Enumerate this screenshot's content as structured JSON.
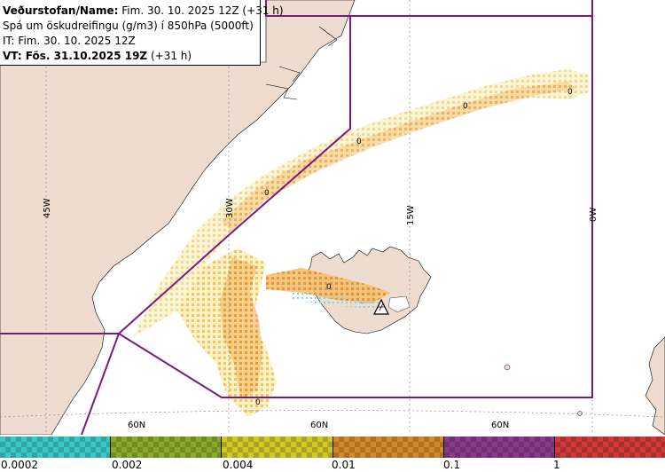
{
  "header": {
    "line1_label": "Veðurstofan/Name:",
    "line1_value": "Fim. 30. 10. 2025 12Z (+31 h)",
    "line2": "Spá um öskudreifingu (g/m3) í 850hPa (5000ft)",
    "line3": "IT: Fim. 30. 10. 2025 12Z",
    "line4_label": "VT: Fös. 31.10.2025 19Z",
    "line4_value": "(+31 h)"
  },
  "map": {
    "longitude_labels": [
      "45W",
      "30W",
      "15W",
      "0W"
    ],
    "latitude_labels": [
      "60N",
      "60N",
      "60N"
    ],
    "contour_labels": [
      "0",
      "0",
      "0",
      "0",
      "0",
      "0"
    ],
    "colors": {
      "land": "#efdcd0",
      "sea": "#ffffff",
      "coastline": "#000000",
      "fir_boundary": "#7a1a80",
      "gridline": "#8a8a8a"
    },
    "volcano_icon": "volcano-warning-triangle-icon"
  },
  "legend": {
    "ticks": [
      "0.0002",
      "0.002",
      "0.004",
      "0.01",
      "0.1",
      "1"
    ],
    "colors": [
      "#3cc8c8",
      "#8aaa2a",
      "#d0c828",
      "#d48a2a",
      "#8a3a8a",
      "#d03a3a"
    ]
  }
}
